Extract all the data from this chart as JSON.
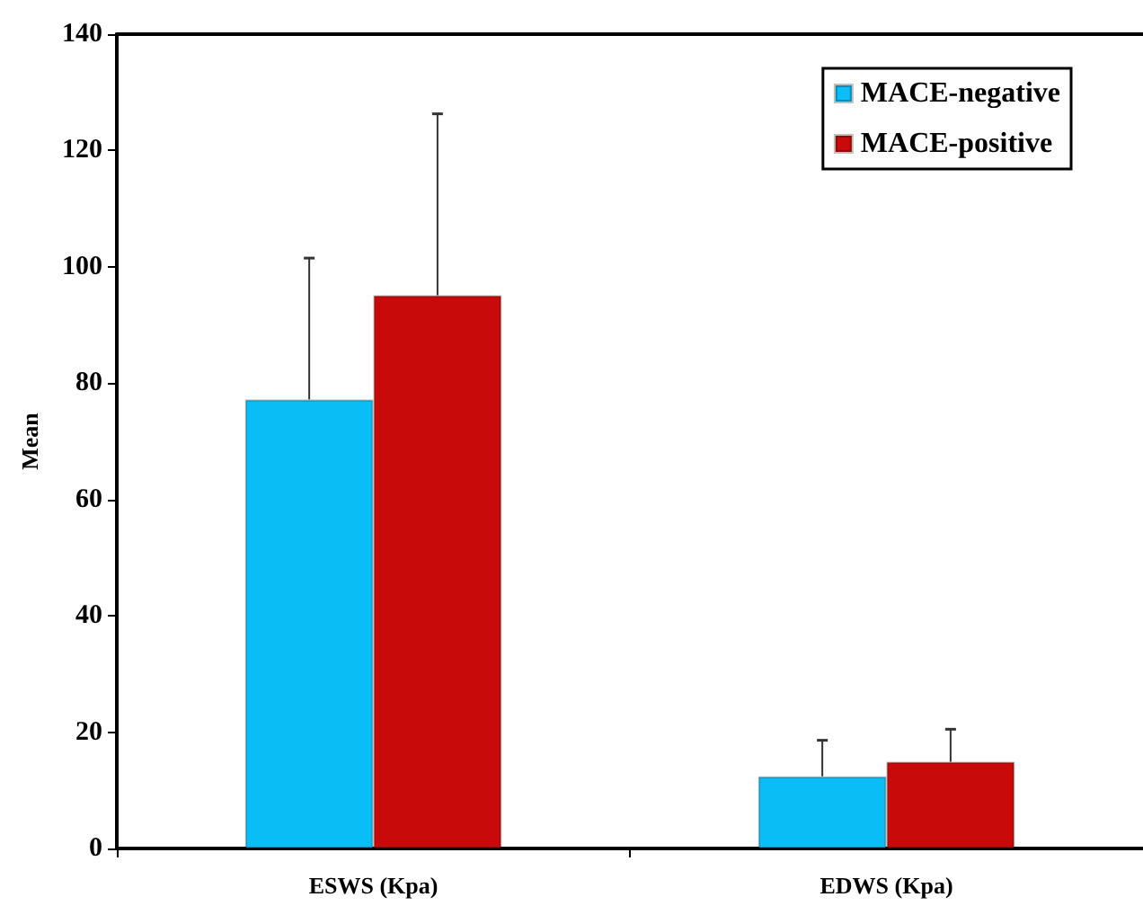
{
  "chart_data": {
    "type": "bar",
    "ylabel": "Mean",
    "categories": [
      "ESWS (Kpa)",
      "EDWS (Kpa)"
    ],
    "series": [
      {
        "name": "MACE-negative",
        "color": "#0abdf5",
        "values": [
          77.2,
          12.4
        ],
        "errors": [
          [
            77.2,
            101.5
          ],
          [
            12.4,
            18.6
          ]
        ]
      },
      {
        "name": "MACE-positive",
        "color": "#c80a0a",
        "values": [
          95.1,
          14.9
        ],
        "errors": [
          [
            95.1,
            126.3
          ],
          [
            14.9,
            20.5
          ]
        ]
      }
    ],
    "ylim": [
      0,
      140
    ],
    "yticks": [
      0,
      20,
      40,
      60,
      80,
      100,
      120,
      140
    ],
    "grid": false,
    "legend": "top right"
  }
}
